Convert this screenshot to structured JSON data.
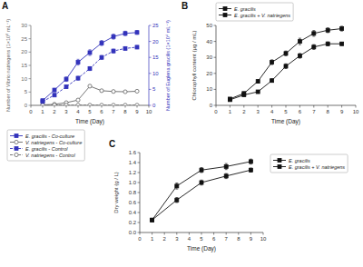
{
  "chart_data": [
    {
      "type": "line",
      "title": "A",
      "x_label": "Time (Day)",
      "y_label": "Number of Vibrio natriegens (1×10⁸ mL⁻¹)",
      "y2_label": "Number of Euglena gracilis (1×10⁴ mL⁻¹)",
      "x": [
        1,
        2,
        3,
        4,
        5,
        6,
        7,
        8,
        9
      ],
      "series": [
        {
          "name": "E. gracilis - Co-culture",
          "color": "#3333BB",
          "marker": "square",
          "line_style": "solid",
          "axis": "y2",
          "values": [
            1.5,
            4.8,
            8.2,
            13.5,
            16.5,
            19.5,
            21.5,
            22.5,
            22.8
          ],
          "errors": [
            0.25,
            0.5,
            0.7,
            0.9,
            0.9,
            0.8,
            0.8,
            0.7,
            0.6
          ]
        },
        {
          "name": "V. natriegens - Co-culture",
          "color": "#666666",
          "marker": "open-circle",
          "line_style": "solid",
          "values": [
            0.15,
            0.4,
            1.0,
            2.0,
            7.2,
            5.5,
            5.2,
            5.1,
            5.3
          ],
          "errors": [
            0.05,
            0.08,
            0.15,
            0.35,
            0.5,
            0.4,
            0.3,
            0.3,
            0.3
          ]
        },
        {
          "name": "E. gracilis - Control",
          "color": "#3333BB",
          "marker": "square",
          "line_style": "dashed",
          "axis": "y2",
          "values": [
            1.2,
            3.2,
            5.8,
            8.5,
            11.5,
            15.0,
            17.0,
            17.8,
            18.2
          ],
          "errors": [
            0.2,
            0.4,
            0.5,
            0.6,
            0.6,
            0.6,
            0.6,
            0.5,
            0.5
          ]
        },
        {
          "name": "V. natriegens - Control",
          "color": "#666666",
          "marker": "open-circle",
          "line_style": "dashed",
          "values": [
            0.05,
            0.05,
            0.05,
            0.05,
            0.05,
            0.05,
            0.05,
            0.05,
            0.05
          ],
          "errors": [
            0.01,
            0.01,
            0.01,
            0.01,
            0.01,
            0.01,
            0.01,
            0.01,
            0.01
          ]
        }
      ],
      "xlim": [
        0,
        10
      ],
      "ylim": [
        0,
        30
      ],
      "y2lim": [
        0,
        25
      ],
      "xticks": [
        0,
        1,
        2,
        3,
        4,
        5,
        6,
        7,
        8,
        9,
        10
      ],
      "yticks": [
        0,
        5,
        10,
        15,
        20,
        25,
        30
      ],
      "y2ticks": [
        0,
        5,
        10,
        15,
        20,
        25
      ],
      "legend": "bottom",
      "grid": false
    },
    {
      "type": "line",
      "title": "B",
      "x_label": "Time (Day)",
      "y_label": "Chlorophyll content (μg / mL)",
      "x": [
        1,
        2,
        3,
        4,
        5,
        6,
        7,
        8,
        9
      ],
      "series": [
        {
          "name": "E. gracilis",
          "color": "#111111",
          "marker": "square",
          "line_style": "solid",
          "values": [
            3.5,
            6.5,
            8.5,
            15.5,
            24.5,
            31.0,
            36.5,
            38.5,
            38.5
          ],
          "errors": [
            0.3,
            0.5,
            0.7,
            1.0,
            1.5,
            1.5,
            1.5,
            1.2,
            1.0
          ]
        },
        {
          "name": "E. gracilis + V. natriegens",
          "color": "#111111",
          "marker": "square",
          "line_style": "solid",
          "values": [
            4.0,
            7.5,
            15.0,
            27.0,
            32.5,
            40.0,
            45.0,
            47.0,
            48.0
          ],
          "errors": [
            0.4,
            0.6,
            1.0,
            1.5,
            1.5,
            2.0,
            1.8,
            1.5,
            1.5
          ]
        }
      ],
      "xlim": [
        0,
        10
      ],
      "ylim": [
        0,
        50
      ],
      "xticks": [
        0,
        1,
        2,
        3,
        4,
        5,
        6,
        7,
        8,
        9,
        10
      ],
      "yticks": [
        0,
        10,
        20,
        30,
        40,
        50
      ],
      "legend": "top",
      "grid": false
    },
    {
      "type": "line",
      "title": "C",
      "x_label": "Time (Day)",
      "y_label": "Dry weight (g / L)",
      "x": [
        1,
        3,
        5,
        7,
        9
      ],
      "series": [
        {
          "name": "E. gracilis",
          "color": "#111111",
          "marker": "square",
          "line_style": "solid",
          "values": [
            0.25,
            0.65,
            1.0,
            1.13,
            1.25
          ],
          "errors": [
            0.02,
            0.05,
            0.05,
            0.05,
            0.04
          ]
        },
        {
          "name": "E. gracilis + V. natriegens",
          "color": "#111111",
          "marker": "square",
          "line_style": "solid",
          "values": [
            0.25,
            0.93,
            1.25,
            1.32,
            1.42
          ],
          "errors": [
            0.02,
            0.06,
            0.05,
            0.06,
            0.05
          ]
        }
      ],
      "xlim": [
        0,
        10
      ],
      "ylim": [
        0,
        1.6
      ],
      "xticks": [
        0,
        1,
        2,
        3,
        4,
        5,
        6,
        7,
        8,
        9,
        10
      ],
      "yticks": [
        {
          "value": 0.0,
          "label": "0.0"
        },
        0.2,
        0.4,
        0.6,
        0.8,
        {
          "value": 1.0,
          "label": "1.0"
        },
        1.2,
        1.4,
        1.6
      ],
      "legend": "right",
      "grid": false
    }
  ]
}
